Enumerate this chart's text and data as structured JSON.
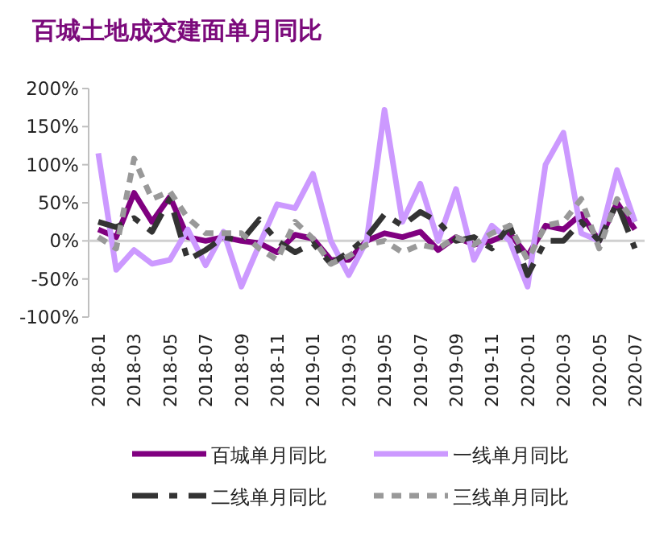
{
  "chart_data": {
    "type": "line",
    "title": "百城土地成交建面单月同比",
    "categories": [
      "2018-01",
      null,
      "2018-03",
      null,
      "2018-05",
      null,
      "2018-07",
      null,
      "2018-09",
      null,
      "2018-11",
      null,
      "2019-01",
      null,
      "2019-03",
      null,
      "2019-05",
      null,
      "2019-07",
      null,
      "2019-09",
      null,
      "2019-11",
      null,
      "2020-01",
      null,
      "2020-03",
      null,
      "2020-05",
      null,
      "2020-07"
    ],
    "series": [
      {
        "name": "百城单月同比",
        "color": "#800080",
        "line_style": "solid",
        "values": [
          15,
          5,
          63,
          25,
          58,
          5,
          0,
          5,
          0,
          -3,
          -15,
          8,
          3,
          -25,
          -25,
          0,
          10,
          5,
          12,
          -12,
          5,
          -5,
          0,
          10,
          -20,
          20,
          15,
          35,
          0,
          50,
          15
        ]
      },
      {
        "name": "一线单月同比",
        "color": "#cc99ff",
        "line_style": "solid",
        "values": [
          115,
          -38,
          -12,
          -30,
          -25,
          15,
          -32,
          12,
          -60,
          -5,
          48,
          43,
          88,
          0,
          -45,
          0,
          172,
          25,
          75,
          0,
          68,
          -25,
          20,
          0,
          -60,
          100,
          142,
          10,
          0,
          93,
          25
        ]
      },
      {
        "name": "二线单月同比",
        "color": "#333333",
        "line_style": "dashed",
        "values": [
          25,
          18,
          30,
          12,
          55,
          -25,
          -12,
          5,
          0,
          28,
          0,
          -15,
          -3,
          -30,
          -15,
          5,
          35,
          20,
          38,
          25,
          0,
          5,
          -10,
          20,
          -45,
          0,
          0,
          25,
          0,
          50,
          -10
        ]
      },
      {
        "name": "三线单月同比",
        "color": "#999999",
        "line_style": "dotted",
        "values": [
          5,
          -10,
          108,
          55,
          65,
          30,
          10,
          10,
          10,
          -10,
          -25,
          25,
          3,
          -30,
          -20,
          -5,
          0,
          -15,
          -5,
          -10,
          5,
          -5,
          10,
          20,
          -25,
          20,
          25,
          55,
          -10,
          55,
          25
        ]
      }
    ],
    "ylim": [
      -100,
      200
    ],
    "yticks": [
      {
        "value": -100,
        "label": "-100%"
      },
      {
        "value": -50,
        "label": "-50%"
      },
      {
        "value": 0,
        "label": "0%"
      },
      {
        "value": 50,
        "label": "50%"
      },
      {
        "value": 100,
        "label": "100%"
      },
      {
        "value": 150,
        "label": "150%"
      },
      {
        "value": 200,
        "label": "200%"
      }
    ],
    "legend": "bottom",
    "marker": "none"
  }
}
